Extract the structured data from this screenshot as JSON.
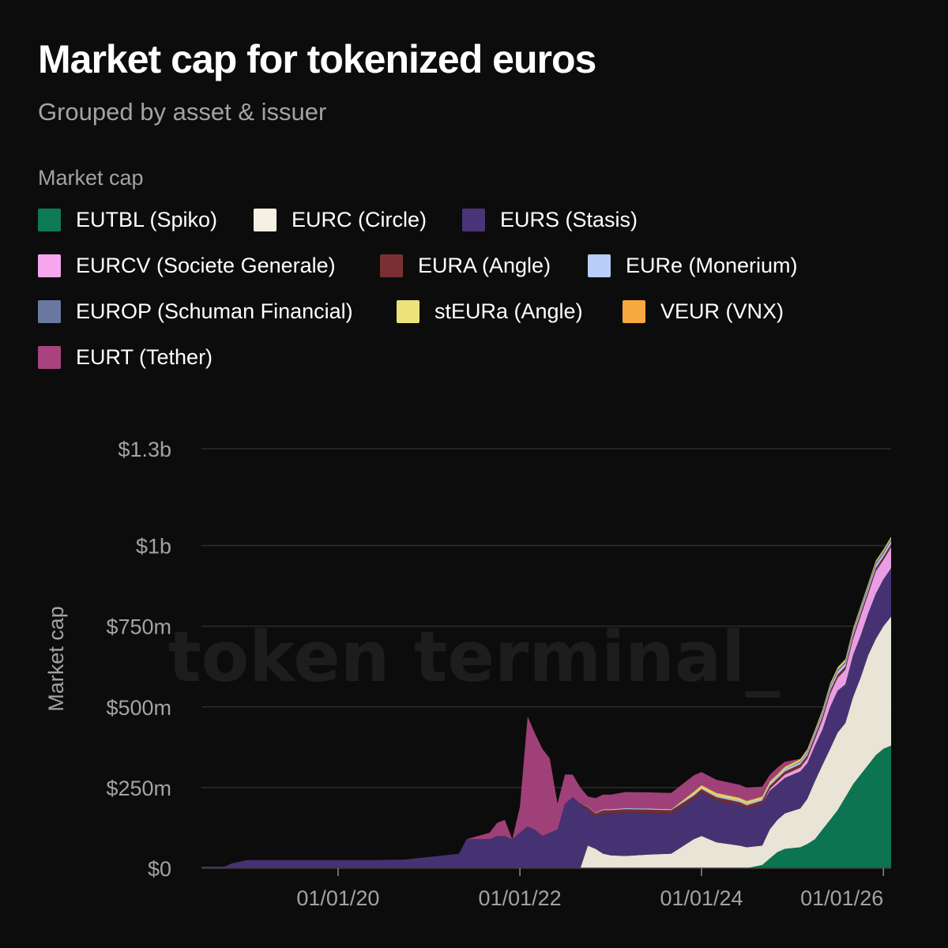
{
  "header": {
    "title": "Market cap for tokenized euros",
    "subtitle": "Grouped by asset & issuer"
  },
  "legend": {
    "title": "Market cap",
    "items": [
      {
        "label": "EUTBL (Spiko)",
        "color": "#0d7a55"
      },
      {
        "label": "EURC (Circle)",
        "color": "#f4f0e2"
      },
      {
        "label": "EURS (Stasis)",
        "color": "#4a3578"
      },
      {
        "label": "EURCV (Societe Generale)",
        "color": "#f5a6ef"
      },
      {
        "label": "EURA (Angle)",
        "color": "#7a3032"
      },
      {
        "label": "EURe (Monerium)",
        "color": "#b8cdf8"
      },
      {
        "label": "EUROP (Schuman Financial)",
        "color": "#6878a0"
      },
      {
        "label": "stEURa (Angle)",
        "color": "#ede27a"
      },
      {
        "label": "VEUR (VNX)",
        "color": "#f7a93d"
      },
      {
        "label": "EURT (Tether)",
        "color": "#a8437f"
      }
    ]
  },
  "watermark": "token terminal_",
  "chart_data": {
    "type": "area",
    "stacked": true,
    "ylabel": "Market cap",
    "xlabel": "",
    "ylim": [
      0,
      1300000000
    ],
    "y_ticks": [
      0,
      250000000,
      500000000,
      750000000,
      1000000000,
      1300000000
    ],
    "y_tick_labels": [
      "$0",
      "$250m",
      "$500m",
      "$750m",
      "$1b",
      "$1.3b"
    ],
    "x_ticks": [
      "2020-01-01",
      "2022-01-01",
      "2024-01-01",
      "2026-01-01"
    ],
    "x_tick_labels": [
      "01/01/20",
      "01/01/22",
      "01/01/24",
      "01/01/26"
    ],
    "x_range": [
      "2018-07-01",
      "2026-02-01"
    ],
    "grid": "horizontal",
    "x": [
      "2018-07-01",
      "2018-10-01",
      "2018-11-01",
      "2019-01-01",
      "2019-06-01",
      "2020-01-01",
      "2020-06-01",
      "2020-10-01",
      "2020-11-01",
      "2021-01-01",
      "2021-03-01",
      "2021-05-01",
      "2021-06-01",
      "2021-09-01",
      "2021-10-01",
      "2021-11-01",
      "2021-12-01",
      "2022-01-01",
      "2022-02-01",
      "2022-03-01",
      "2022-04-01",
      "2022-05-01",
      "2022-06-01",
      "2022-07-01",
      "2022-08-01",
      "2022-09-01",
      "2022-10-01",
      "2022-11-01",
      "2022-12-01",
      "2023-01-01",
      "2023-03-01",
      "2023-06-01",
      "2023-09-01",
      "2023-12-01",
      "2024-01-01",
      "2024-03-01",
      "2024-06-01",
      "2024-07-01",
      "2024-09-01",
      "2024-10-01",
      "2024-11-01",
      "2024-12-01",
      "2025-02-01",
      "2025-03-01",
      "2025-04-01",
      "2025-05-01",
      "2025-06-01",
      "2025-07-01",
      "2025-08-01",
      "2025-09-01",
      "2025-10-01",
      "2025-11-01",
      "2025-12-01",
      "2026-01-01",
      "2026-02-01"
    ],
    "series": [
      {
        "name": "EUTBL (Spiko)",
        "color": "#0d7a55",
        "values": [
          0,
          0,
          0,
          0,
          0,
          0,
          0,
          0,
          0,
          0,
          0,
          0,
          0,
          0,
          0,
          0,
          0,
          0,
          0,
          0,
          0,
          0,
          0,
          0,
          0,
          0,
          0,
          0,
          0,
          0,
          0,
          0,
          0,
          0,
          0,
          0,
          0,
          0,
          10000000,
          30000000,
          50000000,
          60000000,
          65000000,
          75000000,
          90000000,
          120000000,
          150000000,
          180000000,
          220000000,
          260000000,
          290000000,
          320000000,
          350000000,
          370000000,
          380000000
        ]
      },
      {
        "name": "EURC (Circle)",
        "color": "#f4f0e2",
        "values": [
          0,
          0,
          0,
          0,
          0,
          0,
          0,
          0,
          0,
          0,
          0,
          0,
          0,
          0,
          0,
          0,
          0,
          0,
          0,
          0,
          0,
          0,
          0,
          0,
          0,
          0,
          70000000,
          60000000,
          45000000,
          40000000,
          38000000,
          42000000,
          45000000,
          90000000,
          100000000,
          80000000,
          70000000,
          65000000,
          60000000,
          90000000,
          100000000,
          110000000,
          120000000,
          140000000,
          180000000,
          200000000,
          220000000,
          240000000,
          230000000,
          270000000,
          300000000,
          340000000,
          360000000,
          380000000,
          400000000
        ]
      },
      {
        "name": "EURS (Stasis)",
        "color": "#4a3578",
        "values": [
          5000000,
          5000000,
          15000000,
          25000000,
          25000000,
          25000000,
          25000000,
          27000000,
          30000000,
          35000000,
          40000000,
          45000000,
          90000000,
          90000000,
          100000000,
          100000000,
          90000000,
          110000000,
          130000000,
          120000000,
          100000000,
          110000000,
          120000000,
          200000000,
          220000000,
          200000000,
          110000000,
          100000000,
          125000000,
          130000000,
          135000000,
          130000000,
          125000000,
          125000000,
          135000000,
          130000000,
          125000000,
          120000000,
          130000000,
          120000000,
          110000000,
          110000000,
          115000000,
          110000000,
          110000000,
          110000000,
          130000000,
          130000000,
          120000000,
          130000000,
          130000000,
          130000000,
          140000000,
          145000000,
          150000000
        ]
      },
      {
        "name": "EURCV (Societe Generale)",
        "color": "#f5a6ef",
        "values": [
          0,
          0,
          0,
          0,
          0,
          0,
          0,
          0,
          0,
          0,
          0,
          0,
          0,
          0,
          0,
          0,
          0,
          0,
          0,
          0,
          0,
          0,
          0,
          0,
          0,
          0,
          0,
          0,
          0,
          0,
          0,
          0,
          0,
          0,
          0,
          0,
          0,
          0,
          0,
          5000000,
          8000000,
          10000000,
          12000000,
          15000000,
          20000000,
          30000000,
          40000000,
          40000000,
          45000000,
          50000000,
          60000000,
          60000000,
          70000000,
          60000000,
          65000000
        ]
      },
      {
        "name": "EURA (Angle)",
        "color": "#7a3032",
        "values": [
          0,
          0,
          0,
          0,
          0,
          0,
          0,
          0,
          0,
          0,
          0,
          0,
          0,
          0,
          0,
          0,
          0,
          0,
          0,
          0,
          0,
          0,
          0,
          0,
          0,
          0,
          10000000,
          10000000,
          10000000,
          10000000,
          10000000,
          10000000,
          10000000,
          10000000,
          10000000,
          10000000,
          10000000,
          10000000,
          10000000,
          10000000,
          10000000,
          10000000,
          10000000,
          10000000,
          10000000,
          10000000,
          10000000,
          10000000,
          10000000,
          10000000,
          10000000,
          10000000,
          10000000,
          10000000,
          10000000
        ]
      },
      {
        "name": "EURe (Monerium)",
        "color": "#b8cdf8",
        "values": [
          0,
          0,
          0,
          0,
          0,
          0,
          0,
          0,
          0,
          0,
          0,
          0,
          0,
          0,
          0,
          0,
          0,
          0,
          0,
          0,
          0,
          0,
          0,
          0,
          0,
          0,
          2000000,
          2000000,
          3000000,
          3000000,
          3000000,
          3000000,
          3000000,
          3000000,
          3000000,
          4000000,
          5000000,
          5000000,
          5000000,
          6000000,
          6000000,
          7000000,
          7000000,
          8000000,
          8000000,
          9000000,
          10000000,
          10000000,
          10000000,
          10000000,
          10000000,
          10000000,
          10000000,
          10000000,
          10000000
        ]
      },
      {
        "name": "EUROP (Schuman Financial)",
        "color": "#6878a0",
        "values": [
          0,
          0,
          0,
          0,
          0,
          0,
          0,
          0,
          0,
          0,
          0,
          0,
          0,
          0,
          0,
          0,
          0,
          0,
          0,
          0,
          0,
          0,
          0,
          0,
          0,
          0,
          0,
          0,
          0,
          0,
          0,
          0,
          0,
          0,
          0,
          0,
          0,
          0,
          0,
          0,
          0,
          0,
          2000000,
          3000000,
          4000000,
          5000000,
          5000000,
          5000000,
          5000000,
          5000000,
          6000000,
          6000000,
          6000000,
          6000000,
          6000000
        ]
      },
      {
        "name": "stEURa (Angle)",
        "color": "#ede27a",
        "values": [
          0,
          0,
          0,
          0,
          0,
          0,
          0,
          0,
          0,
          0,
          0,
          0,
          0,
          0,
          0,
          0,
          0,
          0,
          0,
          0,
          0,
          0,
          0,
          0,
          0,
          0,
          0,
          0,
          0,
          0,
          0,
          0,
          0,
          8000000,
          8000000,
          8000000,
          7000000,
          7000000,
          6000000,
          6000000,
          6000000,
          6000000,
          6000000,
          6000000,
          6000000,
          6000000,
          6000000,
          6000000,
          6000000,
          6000000,
          5000000,
          5000000,
          5000000,
          5000000,
          5000000
        ]
      },
      {
        "name": "VEUR (VNX)",
        "color": "#f7a93d",
        "values": [
          0,
          0,
          0,
          0,
          0,
          0,
          0,
          0,
          0,
          0,
          0,
          0,
          0,
          0,
          0,
          0,
          0,
          0,
          0,
          0,
          0,
          0,
          0,
          0,
          0,
          0,
          0,
          0,
          0,
          0,
          0,
          0,
          0,
          2000000,
          2000000,
          2000000,
          2000000,
          2000000,
          2000000,
          2000000,
          2000000,
          2000000,
          2000000,
          2000000,
          2000000,
          2000000,
          2000000,
          2000000,
          2000000,
          2000000,
          2000000,
          2000000,
          2000000,
          2000000,
          2000000
        ]
      },
      {
        "name": "EURT (Tether)",
        "color": "#a8437f",
        "values": [
          0,
          0,
          0,
          0,
          0,
          0,
          0,
          0,
          0,
          0,
          0,
          0,
          0,
          20000000,
          40000000,
          50000000,
          0,
          80000000,
          340000000,
          300000000,
          270000000,
          230000000,
          80000000,
          90000000,
          70000000,
          50000000,
          30000000,
          45000000,
          45000000,
          45000000,
          50000000,
          50000000,
          50000000,
          50000000,
          40000000,
          40000000,
          40000000,
          40000000,
          30000000,
          20000000,
          20000000,
          15000000,
          0,
          0,
          0,
          0,
          0,
          0,
          0,
          0,
          0,
          0,
          0,
          0,
          0
        ]
      }
    ]
  }
}
